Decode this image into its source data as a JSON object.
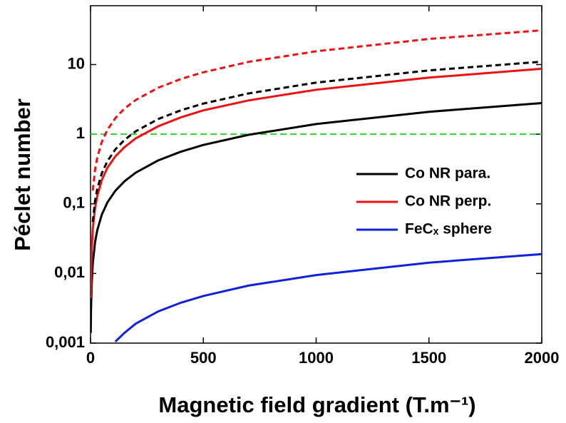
{
  "chart_data": {
    "type": "line",
    "xlabel": "Magnetic field gradient (T.m⁻¹)",
    "ylabel": "Péclet number",
    "log_y": true,
    "x": [
      1,
      2,
      5,
      10,
      20,
      30,
      50,
      75,
      110,
      150,
      200,
      300,
      400,
      500,
      700,
      1000,
      1500,
      2000
    ],
    "series": [
      {
        "name": "Co NR para.",
        "color": "#000000",
        "dashed": false,
        "values": [
          0.0014,
          0.0028,
          0.007,
          0.014,
          0.028,
          0.042,
          0.07,
          0.105,
          0.154,
          0.21,
          0.28,
          0.42,
          0.56,
          0.7,
          0.98,
          1.4,
          2.1,
          2.8
        ]
      },
      {
        "name": "Co NR perp.",
        "color": "#ee1111",
        "dashed": false,
        "values": [
          0.0044,
          0.0087,
          0.022,
          0.044,
          0.087,
          0.13,
          0.22,
          0.33,
          0.48,
          0.65,
          0.87,
          1.3,
          1.74,
          2.2,
          3.05,
          4.35,
          6.5,
          8.7
        ]
      },
      {
        "name": "FeCₓ sphere",
        "color": "#1122dd",
        "dashed": false,
        "values": [
          null,
          null,
          null,
          null,
          null,
          null,
          null,
          null,
          0.00105,
          0.0014,
          0.0019,
          0.00285,
          0.0038,
          0.00475,
          0.0067,
          0.0095,
          0.0143,
          0.019
        ]
      },
      {
        "color": "#000000",
        "dashed": true,
        "values": [
          null,
          null,
          null,
          0.055,
          0.11,
          0.165,
          0.275,
          0.41,
          0.605,
          0.825,
          1.1,
          1.65,
          2.2,
          2.75,
          3.85,
          5.5,
          8.25,
          11
        ]
      },
      {
        "color": "#ee1111",
        "dashed": true,
        "values": [
          null,
          null,
          null,
          0.155,
          0.31,
          0.465,
          0.775,
          1.16,
          1.7,
          2.33,
          3.1,
          4.65,
          6.2,
          7.75,
          10.9,
          15.5,
          23.3,
          31
        ]
      }
    ],
    "hline": {
      "value": 1,
      "color": "#22dd22"
    },
    "xlim": [
      0,
      2000
    ],
    "xticks": [
      0,
      500,
      1000,
      1500,
      2000
    ],
    "ylim": [
      0.001,
      70
    ],
    "yticks": [
      {
        "value": 0.001,
        "label": "0,001"
      },
      {
        "value": 0.01,
        "label": "0,01"
      },
      {
        "value": 0.1,
        "label": "0,1"
      },
      1,
      10
    ]
  }
}
